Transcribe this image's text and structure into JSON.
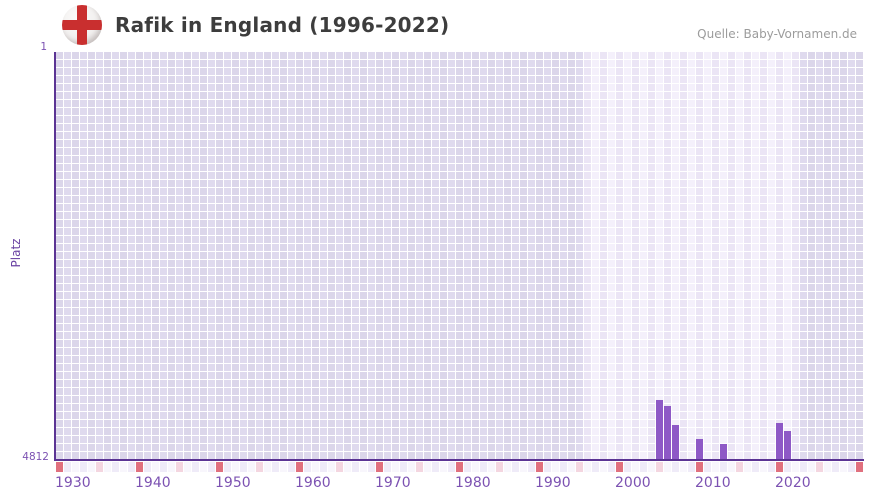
{
  "header": {
    "title": "Rafik in England (1996-2022)",
    "source": "Quelle: Baby-Vornamen.de"
  },
  "chart_data": {
    "type": "bar",
    "title": "Rafik in England (1996-2022)",
    "ylabel": "Platz",
    "y_axis": {
      "top_label": "1",
      "bottom_label": "4812",
      "best_rank": 1,
      "worst_rank": 4812,
      "inverted": true
    },
    "x_axis": {
      "start_year": 1930,
      "end_year": 2030,
      "tick_years": [
        1930,
        1940,
        1950,
        1960,
        1970,
        1980,
        1990,
        2000,
        2010,
        2020
      ]
    },
    "highlight_range": {
      "start_year": 1996,
      "end_year": 2022
    },
    "series": [
      {
        "name": "Platz",
        "points": [
          {
            "year": 2005,
            "rank": 4100
          },
          {
            "year": 2006,
            "rank": 4170
          },
          {
            "year": 2007,
            "rank": 4400
          },
          {
            "year": 2010,
            "rank": 4560
          },
          {
            "year": 2013,
            "rank": 4620
          },
          {
            "year": 2020,
            "rank": 4375
          },
          {
            "year": 2021,
            "rank": 4470
          }
        ]
      }
    ],
    "colors": {
      "bar": "#8e59c6",
      "axis": "#5b3494",
      "tick_label": "#7c52b2",
      "grid_dark_even": "#dbd6ea",
      "grid_dark_odd": "#dfdaee",
      "grid_light_even": "#ebe5f5",
      "grid_light_odd": "#f4f0fb",
      "strip_default_even": "#f8f6fc",
      "strip_default_odd": "#efebf8",
      "strip_half_decade": "#f4d6e0",
      "strip_decade": "#e0707e",
      "flag_red": "#c92f2f"
    }
  }
}
